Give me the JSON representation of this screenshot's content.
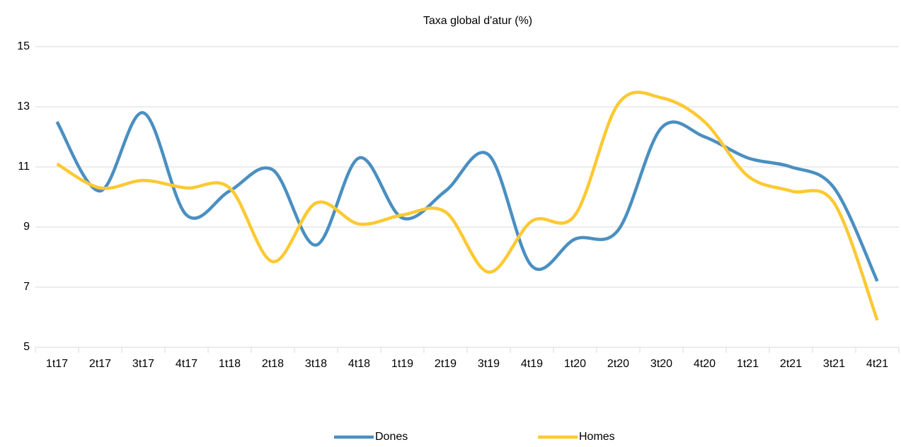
{
  "chart_data": {
    "type": "line",
    "title": "Taxa global d'atur (%)",
    "categories": [
      "1t17",
      "2t17",
      "3t17",
      "4t17",
      "1t18",
      "2t18",
      "3t18",
      "4t18",
      "1t19",
      "2t19",
      "3t19",
      "4t19",
      "1t20",
      "2t20",
      "3t20",
      "4t20",
      "1t21",
      "2t21",
      "3t21",
      "4t21"
    ],
    "series": [
      {
        "name": "Dones",
        "color": "#4a8fc1",
        "values": [
          12.5,
          10.2,
          12.8,
          9.4,
          10.2,
          10.9,
          8.4,
          11.3,
          9.3,
          10.2,
          11.4,
          7.7,
          8.6,
          8.9,
          12.3,
          12.0,
          11.3,
          11.0,
          10.3,
          7.2
        ]
      },
      {
        "name": "Homes",
        "color": "#fdc932",
        "values": [
          11.1,
          10.3,
          10.55,
          10.3,
          10.3,
          7.85,
          9.8,
          9.1,
          9.4,
          9.5,
          7.5,
          9.2,
          9.4,
          13.1,
          13.3,
          12.5,
          10.7,
          10.2,
          9.8,
          5.9
        ]
      }
    ],
    "ylim": [
      5,
      15
    ],
    "yticks": [
      5,
      7,
      9,
      11,
      13,
      15
    ],
    "grid": true,
    "smooth": true,
    "legend": "bottom"
  }
}
